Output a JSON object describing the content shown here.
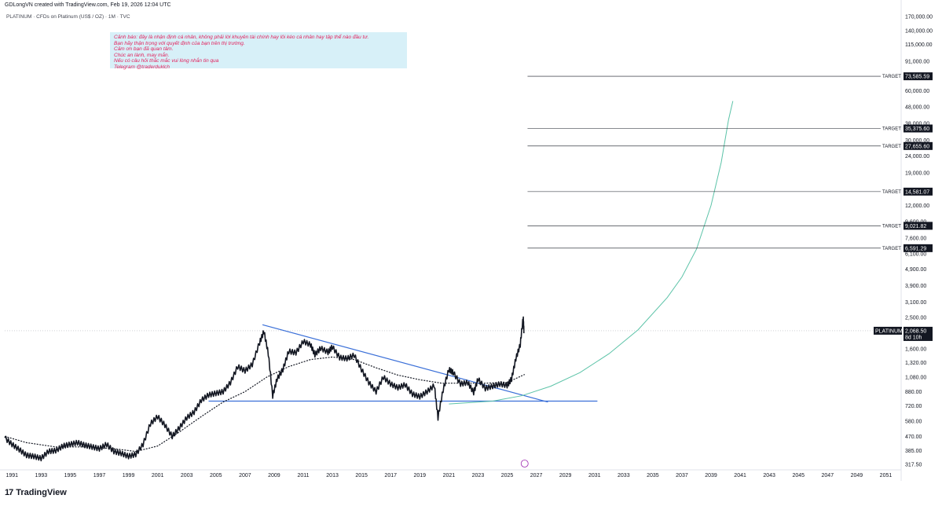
{
  "header": {
    "created_by": "GDLongVN created with TradingView.com, Feb 19, 2026 12:04 UTC",
    "symbol": "PLATINUM · CFDs on Platinum (US$ / OZ) · 1M · TVC"
  },
  "note": {
    "lines": [
      "Cảnh báo: đây là nhận định cá nhân, không phải lời khuyên tài chính hay lôi kéo cá nhân hay tập thể nào đầu tư.",
      "Bạn hãy thận trọng với quyết định của bạn trên thị trường.",
      "Cảm ơn bạn đã quan tâm.",
      "Chúc an lành, may mắn.",
      "Nếu có câu hỏi thắc mắc vui lòng nhắn tin qua",
      "Telegram @traderduklch"
    ]
  },
  "footer": {
    "logo_text": "TradingView",
    "logo_icon": "tradingview-logo-icon"
  },
  "colors": {
    "candle": "#131722",
    "trendline": "#3a6fd8",
    "curve": "#5cc3a8",
    "moving_average": "#131722",
    "tag_bg": "#131722",
    "grid_dotted": "#b2b5be"
  },
  "chart_data": {
    "type": "line",
    "title": "PLATINUM · CFDs on Platinum (US$ / OZ) · 1M · TVC",
    "y_scale": "log",
    "ylim": [
      300,
      180000
    ],
    "xlim": [
      1990.5,
      2052
    ],
    "x_ticks": [
      "1991",
      "1993",
      "1995",
      "1997",
      "1999",
      "2001",
      "2003",
      "2005",
      "2007",
      "2009",
      "2011",
      "2013",
      "2015",
      "2017",
      "2019",
      "2021",
      "2023",
      "2025",
      "2027",
      "2029",
      "2031",
      "2033",
      "2035",
      "2037",
      "2039",
      "2041",
      "2043",
      "2045",
      "2047",
      "2049",
      "2051"
    ],
    "y_ticks": [
      "170,000.00",
      "140,000.00",
      "115,000.00",
      "91,000.00",
      "60,000.00",
      "48,000.00",
      "38,000.00",
      "30,000.00",
      "24,000.00",
      "19,000.00",
      "12,000.00",
      "9,600.00",
      "7,600.00",
      "6,100.00",
      "4,900.00",
      "3,900.00",
      "3,100.00",
      "2,500.00",
      "1,600.00",
      "1,320.00",
      "1,080.00",
      "880.00",
      "720.00",
      "580.00",
      "470.00",
      "385.00",
      "317.50"
    ],
    "price_series": {
      "name": "PLATINUM",
      "points": [
        [
          1990.5,
          460
        ],
        [
          1991.0,
          420
        ],
        [
          1991.5,
          390
        ],
        [
          1992.0,
          360
        ],
        [
          1992.5,
          355
        ],
        [
          1993.0,
          345
        ],
        [
          1993.5,
          380
        ],
        [
          1994.0,
          385
        ],
        [
          1994.5,
          410
        ],
        [
          1995.0,
          420
        ],
        [
          1995.5,
          430
        ],
        [
          1996.0,
          415
        ],
        [
          1996.5,
          405
        ],
        [
          1997.0,
          395
        ],
        [
          1997.5,
          420
        ],
        [
          1998.0,
          380
        ],
        [
          1998.5,
          370
        ],
        [
          1999.0,
          355
        ],
        [
          1999.5,
          365
        ],
        [
          2000.0,
          420
        ],
        [
          2000.5,
          560
        ],
        [
          2001.0,
          620
        ],
        [
          2001.5,
          550
        ],
        [
          2002.0,
          470
        ],
        [
          2002.5,
          530
        ],
        [
          2003.0,
          610
        ],
        [
          2003.5,
          660
        ],
        [
          2004.0,
          780
        ],
        [
          2004.5,
          840
        ],
        [
          2005.0,
          860
        ],
        [
          2005.5,
          880
        ],
        [
          2006.0,
          1000
        ],
        [
          2006.5,
          1250
        ],
        [
          2007.0,
          1180
        ],
        [
          2007.5,
          1290
        ],
        [
          2008.0,
          1750
        ],
        [
          2008.3,
          2050
        ],
        [
          2008.6,
          1500
        ],
        [
          2008.9,
          830
        ],
        [
          2009.2,
          1050
        ],
        [
          2009.6,
          1200
        ],
        [
          2010.0,
          1550
        ],
        [
          2010.5,
          1520
        ],
        [
          2011.0,
          1780
        ],
        [
          2011.5,
          1700
        ],
        [
          2011.8,
          1480
        ],
        [
          2012.2,
          1620
        ],
        [
          2012.7,
          1530
        ],
        [
          2013.0,
          1650
        ],
        [
          2013.5,
          1420
        ],
        [
          2014.0,
          1400
        ],
        [
          2014.5,
          1470
        ],
        [
          2015.0,
          1200
        ],
        [
          2015.5,
          1000
        ],
        [
          2016.0,
          880
        ],
        [
          2016.5,
          1080
        ],
        [
          2017.0,
          980
        ],
        [
          2017.5,
          930
        ],
        [
          2018.0,
          970
        ],
        [
          2018.5,
          850
        ],
        [
          2019.0,
          820
        ],
        [
          2019.5,
          880
        ],
        [
          2020.0,
          960
        ],
        [
          2020.25,
          610
        ],
        [
          2020.6,
          900
        ],
        [
          2021.0,
          1200
        ],
        [
          2021.3,
          1150
        ],
        [
          2021.8,
          980
        ],
        [
          2022.3,
          1000
        ],
        [
          2022.7,
          870
        ],
        [
          2023.0,
          1050
        ],
        [
          2023.5,
          920
        ],
        [
          2024.0,
          950
        ],
        [
          2024.5,
          980
        ],
        [
          2025.0,
          960
        ],
        [
          2025.3,
          1050
        ],
        [
          2025.6,
          1400
        ],
        [
          2025.9,
          1700
        ],
        [
          2026.1,
          2500
        ],
        [
          2026.15,
          2068.5
        ]
      ]
    },
    "moving_average": {
      "points": [
        [
          1990.5,
          470
        ],
        [
          1992,
          430
        ],
        [
          1994,
          405
        ],
        [
          1996,
          405
        ],
        [
          1998,
          395
        ],
        [
          1999.5,
          380
        ],
        [
          2001,
          410
        ],
        [
          2002.5,
          500
        ],
        [
          2004,
          620
        ],
        [
          2005.5,
          760
        ],
        [
          2007,
          880
        ],
        [
          2008.5,
          1080
        ],
        [
          2010,
          1250
        ],
        [
          2011.5,
          1380
        ],
        [
          2013,
          1430
        ],
        [
          2014.5,
          1380
        ],
        [
          2016,
          1230
        ],
        [
          2017.5,
          1110
        ],
        [
          2019,
          1040
        ],
        [
          2020.5,
          990
        ],
        [
          2022,
          990
        ],
        [
          2023.5,
          990
        ],
        [
          2025,
          1000
        ],
        [
          2026.2,
          1120
        ]
      ]
    },
    "curve": {
      "points": [
        [
          2021,
          740
        ],
        [
          2024,
          770
        ],
        [
          2026,
          830
        ],
        [
          2028,
          950
        ],
        [
          2030,
          1150
        ],
        [
          2032,
          1500
        ],
        [
          2034,
          2100
        ],
        [
          2036,
          3300
        ],
        [
          2037,
          4400
        ],
        [
          2038,
          6500
        ],
        [
          2039,
          12000
        ],
        [
          2039.7,
          22000
        ],
        [
          2040.2,
          40000
        ],
        [
          2040.5,
          52000
        ]
      ]
    },
    "trendline": [
      [
        2008.2,
        2250
      ],
      [
        2027.8,
        760
      ]
    ],
    "support_line": [
      [
        2004.5,
        770
      ],
      [
        2031.2,
        770
      ]
    ],
    "targets": [
      {
        "label": "TARGET",
        "value": "73,585.59",
        "y": 73585.59
      },
      {
        "label": "TARGET",
        "value": "35,375.60",
        "y": 35375.6
      },
      {
        "label": "TARGET",
        "value": "27,655.60",
        "y": 27655.6
      },
      {
        "label": "TARGET",
        "value": "14,581.07",
        "y": 14581.07
      },
      {
        "label": "TARGET",
        "value": "9,021.82",
        "y": 9021.82
      },
      {
        "label": "TARGET",
        "value": "6,591.29",
        "y": 6591.29
      }
    ],
    "target_x_start": 2026.4,
    "current_price": {
      "symbol": "PLATINUM",
      "value": "2,068.50",
      "countdown": "8d 10h",
      "y": 2068.5
    },
    "grid": false,
    "legend": "none"
  }
}
